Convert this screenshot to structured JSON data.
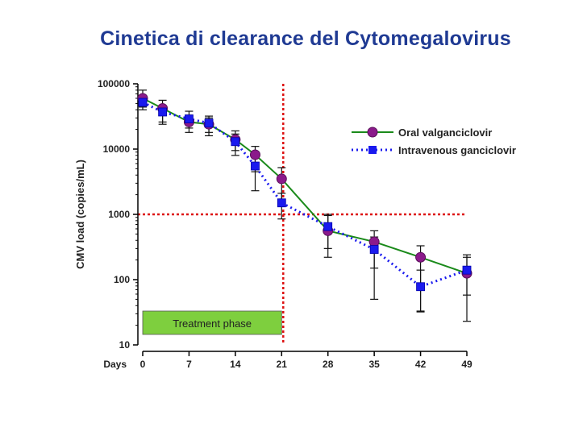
{
  "colors": {
    "title": "#1f3a93",
    "oral": "#1a8a1a",
    "oral_marker": "#8b1a8b",
    "iv": "#1a1aee",
    "red_lines": "#dd1111",
    "treatment_fill": "#7ecf3e"
  },
  "chart_data": {
    "type": "line",
    "title": "Cinetica di clearance  del Cytomegalovirus",
    "xlabel": "Days",
    "ylabel": "CMV load (copies/mL)",
    "yscale": "log",
    "ylim": [
      10,
      100000
    ],
    "xlim": [
      0,
      49
    ],
    "x_ticks": [
      "0",
      "7",
      "14",
      "21",
      "28",
      "35",
      "42",
      "49"
    ],
    "y_ticks": [
      "10",
      "100",
      "1000",
      "10000",
      "100000"
    ],
    "legend_position": "top-right",
    "annotation": "Treatment phase",
    "reference_lines": {
      "vertical_x": 21,
      "horizontal_y": 1000
    },
    "series": [
      {
        "name": "Oral valganciclovir",
        "marker": "circle",
        "x": [
          0,
          3,
          7,
          10,
          14,
          17,
          21,
          28,
          35,
          42,
          49
        ],
        "y": [
          60000,
          42000,
          26000,
          24000,
          14000,
          8200,
          3500,
          560,
          380,
          220,
          125
        ],
        "err_low": [
          40000,
          26000,
          18000,
          16000,
          8000,
          4500,
          1500,
          220,
          50,
          33,
          23
        ],
        "err_high": [
          80000,
          56000,
          38000,
          32000,
          19000,
          11000,
          5200,
          1000,
          560,
          330,
          240
        ]
      },
      {
        "name": "Intravenous ganciclovir",
        "marker": "square",
        "x": [
          0,
          3,
          7,
          10,
          14,
          17,
          21,
          28,
          35,
          42,
          49
        ],
        "y": [
          52000,
          37000,
          29000,
          25000,
          13000,
          5500,
          1500,
          650,
          290,
          78,
          140
        ],
        "err_low": [
          44000,
          24000,
          21000,
          18000,
          9500,
          2300,
          850,
          300,
          150,
          32,
          58
        ],
        "err_high": [
          58000,
          45000,
          33000,
          30000,
          17000,
          9000,
          2100,
          960,
          450,
          140,
          220
        ]
      }
    ]
  }
}
